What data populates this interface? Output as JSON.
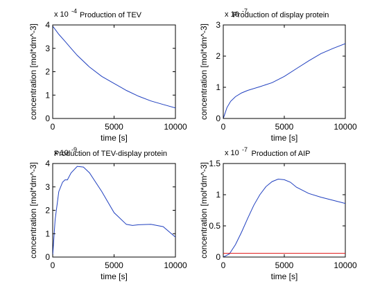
{
  "figure": {
    "background": "#ffffff"
  },
  "chart_data": [
    {
      "type": "line",
      "title": "Production of TEV",
      "xlabel": "time [s]",
      "ylabel": "concentration [mol*dm^-3]",
      "xlim": [
        0,
        10000
      ],
      "ylim": [
        0,
        4
      ],
      "xticks": [
        "0",
        "5000",
        "10000"
      ],
      "yticks": [
        "0",
        "1",
        "2",
        "3",
        "4"
      ],
      "ytick_values": [
        0,
        1,
        2,
        3,
        4
      ],
      "xtick_values": [
        0,
        5000,
        10000
      ],
      "exponent": "x 10",
      "exponent_power": "-4",
      "series": [
        {
          "color": "#1f3fbf",
          "x": [
            0,
            500,
            1000,
            1500,
            2000,
            3000,
            4000,
            5000,
            6000,
            7000,
            8000,
            9000,
            10000
          ],
          "y": [
            3.95,
            3.6,
            3.3,
            3.0,
            2.7,
            2.2,
            1.8,
            1.5,
            1.2,
            0.95,
            0.75,
            0.6,
            0.45
          ]
        }
      ]
    },
    {
      "type": "line",
      "title": "Production of display protein",
      "xlabel": "time [s]",
      "ylabel": "concentration [mol*dm^-3]",
      "xlim": [
        0,
        10000
      ],
      "ylim": [
        0,
        3
      ],
      "xticks": [
        "0",
        "5000",
        "10000"
      ],
      "yticks": [
        "0",
        "1",
        "2",
        "3"
      ],
      "ytick_values": [
        0,
        1,
        2,
        3
      ],
      "xtick_values": [
        0,
        5000,
        10000
      ],
      "exponent": "x 10",
      "exponent_power": "-7",
      "series": [
        {
          "color": "#1f3fbf",
          "x": [
            0,
            300,
            600,
            1000,
            1500,
            2000,
            3000,
            4000,
            5000,
            6000,
            7000,
            8000,
            9000,
            10000
          ],
          "y": [
            0.0,
            0.35,
            0.55,
            0.7,
            0.82,
            0.9,
            1.02,
            1.15,
            1.35,
            1.6,
            1.85,
            2.08,
            2.25,
            2.4
          ]
        }
      ]
    },
    {
      "type": "line",
      "title": "Production of TEV-display protein",
      "xlabel": "time [s]",
      "ylabel": "concentration [mol*dm^-3]",
      "xlim": [
        0,
        10000
      ],
      "ylim": [
        0,
        4
      ],
      "xticks": [
        "0",
        "5000",
        "10000"
      ],
      "yticks": [
        "0",
        "1",
        "2",
        "3",
        "4"
      ],
      "ytick_values": [
        0,
        1,
        2,
        3,
        4
      ],
      "xtick_values": [
        0,
        5000,
        10000
      ],
      "exponent": "x 10",
      "exponent_power": "-9",
      "series": [
        {
          "color": "#1f3fbf",
          "x": [
            0,
            200,
            500,
            800,
            1000,
            1200,
            1500,
            2000,
            2500,
            3000,
            4000,
            5000,
            6000,
            6500,
            7000,
            8000,
            9000,
            10000
          ],
          "y": [
            0.05,
            1.6,
            2.8,
            3.2,
            3.3,
            3.3,
            3.6,
            3.88,
            3.85,
            3.6,
            2.8,
            1.9,
            1.4,
            1.35,
            1.38,
            1.4,
            1.3,
            0.85
          ]
        }
      ]
    },
    {
      "type": "line",
      "title": "Production of AIP",
      "xlabel": "time [s]",
      "ylabel": "concentration [mol*dm^-3]",
      "xlim": [
        0,
        10000
      ],
      "ylim": [
        0,
        1.5
      ],
      "xticks": [
        "0",
        "5000",
        "10000"
      ],
      "yticks": [
        "0",
        "0.5",
        "1",
        "1.5"
      ],
      "ytick_values": [
        0,
        0.5,
        1,
        1.5
      ],
      "xtick_values": [
        0,
        5000,
        10000
      ],
      "exponent": "x 10",
      "exponent_power": "-7",
      "series": [
        {
          "color": "#1f3fbf",
          "x": [
            0,
            500,
            1000,
            1500,
            2000,
            2500,
            3000,
            3500,
            4000,
            4500,
            5000,
            5500,
            6000,
            7000,
            8000,
            9000,
            10000
          ],
          "y": [
            0.0,
            0.05,
            0.2,
            0.4,
            0.62,
            0.83,
            1.0,
            1.13,
            1.21,
            1.25,
            1.24,
            1.2,
            1.12,
            1.02,
            0.96,
            0.91,
            0.86
          ]
        },
        {
          "color": "#e01010",
          "x": [
            0,
            10000
          ],
          "y": [
            0.06,
            0.06
          ]
        }
      ]
    }
  ]
}
